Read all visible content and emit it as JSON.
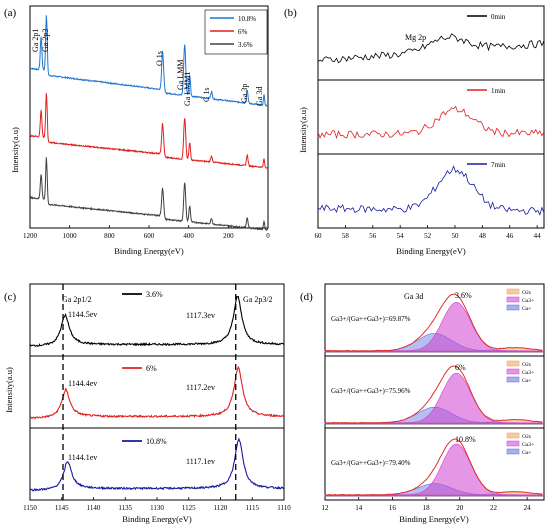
{
  "chart_data": [
    {
      "panel": "(a)",
      "type": "line",
      "xlabel": "Binding Energy(eV)",
      "ylabel": "Intensity(a.u)",
      "xlim": [
        1200,
        0
      ],
      "x_ticks": [
        "1200",
        "1000",
        "800",
        "600",
        "400",
        "200",
        "0"
      ],
      "legend_position": "top-right",
      "series": [
        {
          "name": "10.8%",
          "color": "#1f77d4",
          "offset": 2.0,
          "baseline": 0.55,
          "peak_scale": 1.0
        },
        {
          "name": "6%",
          "color": "#e02020",
          "offset": 1.0,
          "baseline": 0.45,
          "peak_scale": 0.8
        },
        {
          "name": "3.6%",
          "color": "#404040",
          "offset": 0.0,
          "baseline": 0.45,
          "peak_scale": 0.75
        }
      ],
      "peaks": [
        {
          "label": "Ga 2p1",
          "x": 1144,
          "h": 0.55,
          "w": 4
        },
        {
          "label": "Ga 2p3",
          "x": 1117,
          "h": 0.95,
          "w": 4
        },
        {
          "label": "O 1s",
          "x": 531,
          "h": 0.65,
          "w": 5
        },
        {
          "label": "Ga LMM",
          "x": 420,
          "h": 0.85,
          "w": 5
        },
        {
          "label": "Ga LMM1",
          "x": 395,
          "h": 0.35,
          "w": 4
        },
        {
          "label": "C 1s",
          "x": 285,
          "h": 0.12,
          "w": 4
        },
        {
          "label": "Ga 3p",
          "x": 105,
          "h": 0.22,
          "w": 4
        },
        {
          "label": "Ga 3d",
          "x": 20,
          "h": 0.18,
          "w": 3
        }
      ],
      "peak_labels": [
        "Ga 2p1",
        "Ga 2p3",
        "O 1s",
        "Ga LMM",
        "Ga LMM1",
        "C 1s",
        "Ga 3p",
        "Ga 3d"
      ]
    },
    {
      "panel": "(b)",
      "type": "line",
      "xlabel": "Binding Energy(eV)",
      "ylabel": "Intensity(a.u)",
      "xlim": [
        60,
        43.5
      ],
      "x_ticks": [
        "60",
        "58",
        "56",
        "54",
        "52",
        "50",
        "48",
        "46",
        "44"
      ],
      "annotation": "Mg 2p",
      "series": [
        {
          "name": "0min",
          "color": "#000000",
          "peak_x": 50.5,
          "peak_h": 0.25,
          "slope": 0.7
        },
        {
          "name": "1min",
          "color": "#e02020",
          "peak_x": 50.0,
          "peak_h": 0.45,
          "slope": 0.05
        },
        {
          "name": "7min",
          "color": "#1a1aa0",
          "peak_x": 50.0,
          "peak_h": 0.75,
          "slope": -0.1
        }
      ]
    },
    {
      "panel": "(c)",
      "type": "line",
      "xlabel": "Binding Energy(eV)",
      "ylabel": "Intensity(a.u)",
      "xlim": [
        1150,
        1110
      ],
      "x_ticks": [
        "1150",
        "1145",
        "1140",
        "1135",
        "1130",
        "1125",
        "1120",
        "1115",
        "1110"
      ],
      "vlines": [
        1144.8,
        1117.6
      ],
      "peak_labels": [
        "Ga 2p1/2",
        "Ga 2p3/2"
      ],
      "series": [
        {
          "name": "3.6%",
          "color": "#000000",
          "peaks": [
            {
              "x": 1144.5,
              "h": 0.5
            },
            {
              "x": 1117.3,
              "h": 0.8
            }
          ],
          "labels": [
            "1144.5ev",
            "1117.3ev"
          ]
        },
        {
          "name": "6%",
          "color": "#e02020",
          "peaks": [
            {
              "x": 1144.4,
              "h": 0.45
            },
            {
              "x": 1117.2,
              "h": 0.82
            }
          ],
          "labels": [
            "1144.4ev",
            "1117.2ev"
          ]
        },
        {
          "name": "10.8%",
          "color": "#1a1aa0",
          "peaks": [
            {
              "x": 1144.1,
              "h": 0.45
            },
            {
              "x": 1117.1,
              "h": 0.82
            }
          ],
          "labels": [
            "1144.1ev",
            "1117.1ev"
          ]
        }
      ]
    },
    {
      "panel": "(d)",
      "type": "area",
      "xlabel": "Binding Energy(eV)",
      "xlim": [
        12,
        25
      ],
      "x_ticks": [
        "12",
        "14",
        "16",
        "18",
        "20",
        "22",
        "24"
      ],
      "annotation": "Ga 3d",
      "legend": [
        "O2s",
        "Ga3+",
        "Ga+"
      ],
      "colors": {
        "o2s": "#f0a050",
        "ga3": "#d040d0",
        "ga1": "#6070e0",
        "envelope": "#e03030"
      },
      "series": [
        {
          "name": "3.6%",
          "ratio": "Ga3+/(Ga++Ga3+)=69.87%",
          "ga3_h": 0.78,
          "ga1_h": 0.28,
          "o2s_h": 0.05
        },
        {
          "name": "6%",
          "ratio": "Ga3+/(Ga++Ga3+)=75.96%",
          "ga3_h": 0.8,
          "ga1_h": 0.25,
          "o2s_h": 0.05
        },
        {
          "name": "10.8%",
          "ratio": "Ga3+/(Ga++Ga3+)=79.40%",
          "ga3_h": 0.82,
          "ga1_h": 0.18,
          "o2s_h": 0.05
        }
      ]
    }
  ]
}
